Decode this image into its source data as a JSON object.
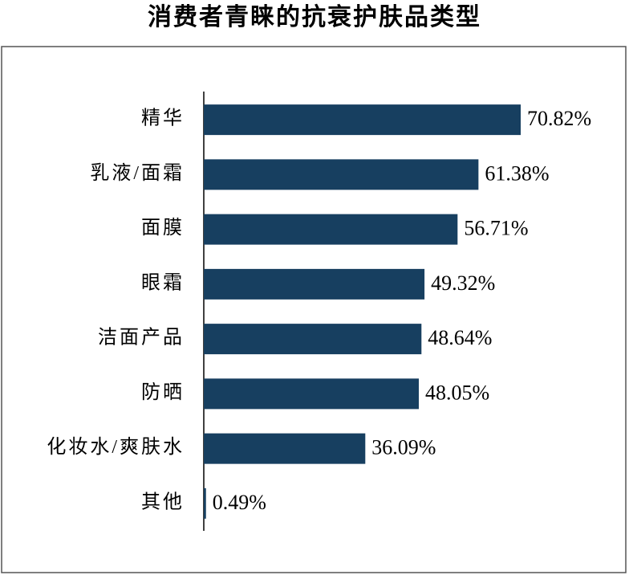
{
  "chart_data": {
    "type": "barh",
    "title": "消费者青睐的抗衰护肤品类型",
    "categories": [
      "精华",
      "乳液/面霜",
      "面膜",
      "眼霜",
      "洁面产品",
      "防晒",
      "化妆水/爽肤水",
      "其他"
    ],
    "values": [
      70.82,
      61.38,
      56.71,
      49.32,
      48.64,
      48.05,
      36.09,
      0.49
    ],
    "value_labels": [
      "70.82%",
      "61.38%",
      "56.71%",
      "49.32%",
      "48.64%",
      "48.05%",
      "36.09%",
      "0.49%"
    ],
    "color": "#173f60",
    "xlim": [
      0,
      90
    ]
  }
}
